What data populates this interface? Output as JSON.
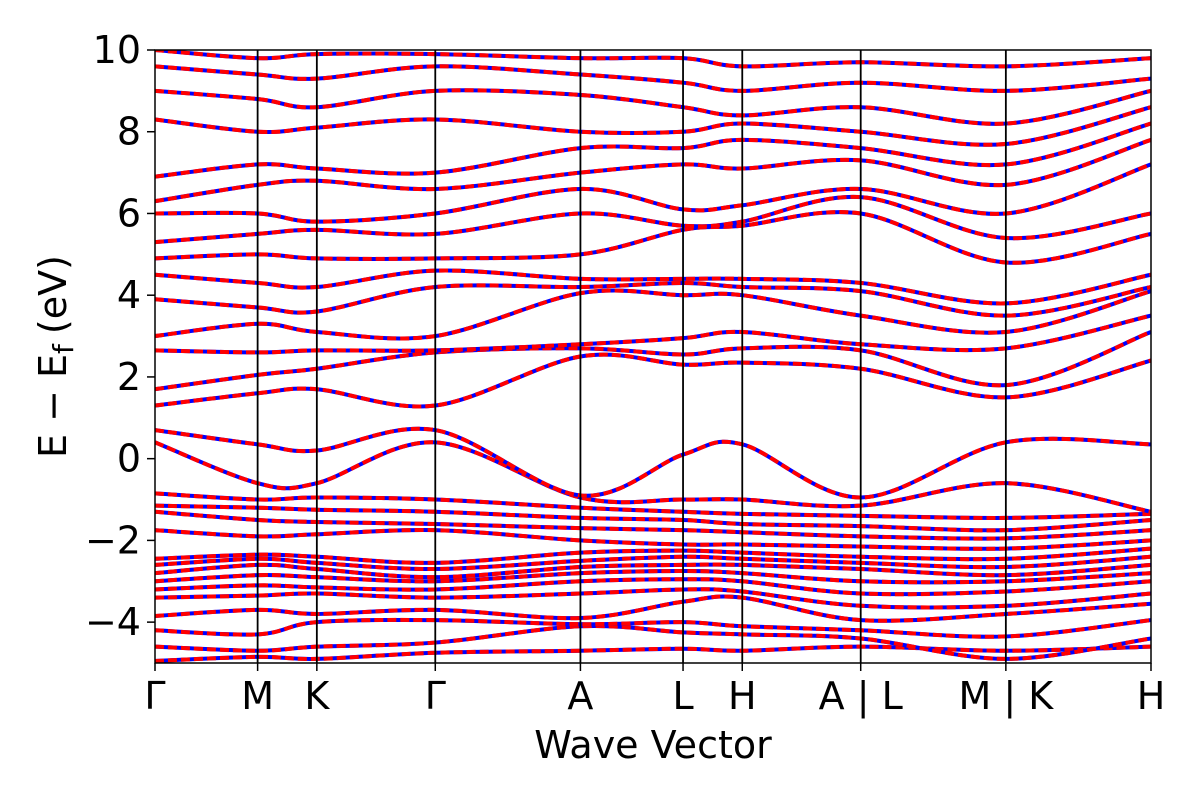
{
  "chart_data": {
    "type": "line",
    "title": "",
    "xlabel": "Wave Vector",
    "ylabel": "E − E",
    "ylabel_sub": "f",
    "ylabel_unit": "(eV)",
    "ylim": [
      -5,
      10
    ],
    "yticks": [
      -4,
      -2,
      0,
      2,
      4,
      6,
      8,
      10
    ],
    "ytick_labels": [
      "−4",
      "−2",
      "0",
      "2",
      "4",
      "6",
      "8",
      "10"
    ],
    "k_path_positions": [
      0,
      0.707,
      1.115,
      1.931,
      2.931,
      3.638,
      4.046,
      4.862,
      5.862,
      6.862
    ],
    "k_labels": [
      "Γ",
      "M",
      "K",
      "Γ",
      "A",
      "L",
      "H",
      "A | L",
      "M | K",
      "H"
    ],
    "xlim": [
      0,
      6.862
    ],
    "series_colors": {
      "dft": "#ff0000",
      "wannier": "#0000ff"
    },
    "bands": [
      [
        [
          0,
          -4.95
        ],
        [
          0.707,
          -4.85
        ],
        [
          1.115,
          -4.9
        ],
        [
          1.931,
          -4.75
        ],
        [
          2.931,
          -4.7
        ],
        [
          3.638,
          -4.65
        ],
        [
          4.046,
          -4.7
        ],
        [
          4.862,
          -4.6
        ],
        [
          5.862,
          -4.7
        ],
        [
          6.862,
          -4.6
        ]
      ],
      [
        [
          0,
          -4.6
        ],
        [
          0.707,
          -4.7
        ],
        [
          1.115,
          -4.6
        ],
        [
          1.931,
          -4.5
        ],
        [
          2.931,
          -4.1
        ],
        [
          3.638,
          -4.25
        ],
        [
          4.046,
          -4.3
        ],
        [
          4.862,
          -4.4
        ],
        [
          5.862,
          -4.9
        ],
        [
          6.862,
          -4.4
        ]
      ],
      [
        [
          0,
          -4.2
        ],
        [
          0.707,
          -4.3
        ],
        [
          1.115,
          -4.0
        ],
        [
          1.931,
          -3.95
        ],
        [
          2.931,
          -4.05
        ],
        [
          3.638,
          -4.0
        ],
        [
          4.046,
          -4.1
        ],
        [
          4.862,
          -4.2
        ],
        [
          5.862,
          -4.35
        ],
        [
          6.862,
          -3.95
        ]
      ],
      [
        [
          0,
          -3.85
        ],
        [
          0.707,
          -3.7
        ],
        [
          1.115,
          -3.8
        ],
        [
          1.931,
          -3.7
        ],
        [
          2.931,
          -3.9
        ],
        [
          3.638,
          -3.5
        ],
        [
          4.046,
          -3.4
        ],
        [
          4.862,
          -3.95
        ],
        [
          5.862,
          -3.8
        ],
        [
          6.862,
          -3.55
        ]
      ],
      [
        [
          0,
          -3.4
        ],
        [
          0.707,
          -3.35
        ],
        [
          1.115,
          -3.3
        ],
        [
          1.931,
          -3.4
        ],
        [
          2.931,
          -3.3
        ],
        [
          3.638,
          -3.2
        ],
        [
          4.046,
          -3.25
        ],
        [
          4.862,
          -3.6
        ],
        [
          5.862,
          -3.6
        ],
        [
          6.862,
          -3.3
        ]
      ],
      [
        [
          0,
          -3.2
        ],
        [
          0.707,
          -3.1
        ],
        [
          1.115,
          -3.15
        ],
        [
          1.931,
          -3.2
        ],
        [
          2.931,
          -3.0
        ],
        [
          3.638,
          -2.95
        ],
        [
          4.046,
          -3.0
        ],
        [
          4.862,
          -3.3
        ],
        [
          5.862,
          -3.25
        ],
        [
          6.862,
          -3.0
        ]
      ],
      [
        [
          0,
          -3.0
        ],
        [
          0.707,
          -2.85
        ],
        [
          1.115,
          -2.9
        ],
        [
          1.931,
          -3.0
        ],
        [
          2.931,
          -2.8
        ],
        [
          3.638,
          -2.75
        ],
        [
          4.046,
          -2.8
        ],
        [
          4.862,
          -3.0
        ],
        [
          5.862,
          -3.0
        ],
        [
          6.862,
          -2.8
        ]
      ],
      [
        [
          0,
          -2.8
        ],
        [
          0.707,
          -2.6
        ],
        [
          1.115,
          -2.7
        ],
        [
          1.931,
          -2.9
        ],
        [
          2.931,
          -2.65
        ],
        [
          3.638,
          -2.6
        ],
        [
          4.046,
          -2.6
        ],
        [
          4.862,
          -2.7
        ],
        [
          5.862,
          -2.85
        ],
        [
          6.862,
          -2.6
        ]
      ],
      [
        [
          0,
          -2.6
        ],
        [
          0.707,
          -2.45
        ],
        [
          1.115,
          -2.55
        ],
        [
          1.931,
          -2.7
        ],
        [
          2.931,
          -2.5
        ],
        [
          3.638,
          -2.4
        ],
        [
          4.046,
          -2.45
        ],
        [
          4.862,
          -2.55
        ],
        [
          5.862,
          -2.65
        ],
        [
          6.862,
          -2.4
        ]
      ],
      [
        [
          0,
          -2.45
        ],
        [
          0.707,
          -2.35
        ],
        [
          1.115,
          -2.4
        ],
        [
          1.931,
          -2.55
        ],
        [
          2.931,
          -2.3
        ],
        [
          3.638,
          -2.25
        ],
        [
          4.046,
          -2.3
        ],
        [
          4.862,
          -2.4
        ],
        [
          5.862,
          -2.45
        ],
        [
          6.862,
          -2.2
        ]
      ],
      [
        [
          0,
          -1.75
        ],
        [
          0.707,
          -1.9
        ],
        [
          1.115,
          -1.85
        ],
        [
          1.931,
          -1.75
        ],
        [
          2.931,
          -2.0
        ],
        [
          3.638,
          -2.1
        ],
        [
          4.046,
          -2.1
        ],
        [
          4.862,
          -2.15
        ],
        [
          5.862,
          -2.2
        ],
        [
          6.862,
          -2.0
        ]
      ],
      [
        [
          0,
          -1.3
        ],
        [
          0.707,
          -1.5
        ],
        [
          1.115,
          -1.55
        ],
        [
          1.931,
          -1.6
        ],
        [
          2.931,
          -1.7
        ],
        [
          3.638,
          -1.75
        ],
        [
          4.046,
          -1.8
        ],
        [
          4.862,
          -1.9
        ],
        [
          5.862,
          -1.95
        ],
        [
          6.862,
          -1.75
        ]
      ],
      [
        [
          0,
          -1.15
        ],
        [
          0.707,
          -1.2
        ],
        [
          1.115,
          -1.25
        ],
        [
          1.931,
          -1.3
        ],
        [
          2.931,
          -1.45
        ],
        [
          3.638,
          -1.5
        ],
        [
          4.046,
          -1.6
        ],
        [
          4.862,
          -1.65
        ],
        [
          5.862,
          -1.75
        ],
        [
          6.862,
          -1.5
        ]
      ],
      [
        [
          0,
          -0.85
        ],
        [
          0.707,
          -1.0
        ],
        [
          1.115,
          -0.95
        ],
        [
          1.931,
          -1.0
        ],
        [
          2.931,
          -1.2
        ],
        [
          3.638,
          -1.3
        ],
        [
          4.046,
          -1.35
        ],
        [
          4.862,
          -1.4
        ],
        [
          5.862,
          -1.45
        ],
        [
          6.862,
          -1.35
        ]
      ],
      [
        [
          0,
          0.4
        ],
        [
          0.707,
          -0.6
        ],
        [
          1.115,
          -0.6
        ],
        [
          1.931,
          0.4
        ],
        [
          2.931,
          -0.95
        ],
        [
          3.638,
          -1.0
        ],
        [
          4.046,
          -1.0
        ],
        [
          4.862,
          -1.15
        ],
        [
          5.862,
          -0.6
        ],
        [
          6.862,
          -1.3
        ]
      ],
      [
        [
          0,
          0.7
        ],
        [
          0.707,
          0.35
        ],
        [
          1.115,
          0.2
        ],
        [
          1.931,
          0.7
        ],
        [
          2.931,
          -0.9
        ],
        [
          3.638,
          0.1
        ],
        [
          4.046,
          0.35
        ],
        [
          4.862,
          -0.95
        ],
        [
          5.862,
          0.4
        ],
        [
          6.862,
          0.35
        ]
      ],
      [
        [
          0,
          1.3
        ],
        [
          0.707,
          1.6
        ],
        [
          1.115,
          1.7
        ],
        [
          1.931,
          1.3
        ],
        [
          2.931,
          2.5
        ],
        [
          3.638,
          2.3
        ],
        [
          4.046,
          2.35
        ],
        [
          4.862,
          2.2
        ],
        [
          5.862,
          1.5
        ],
        [
          6.862,
          2.4
        ]
      ],
      [
        [
          0,
          1.7
        ],
        [
          0.707,
          2.05
        ],
        [
          1.115,
          2.2
        ],
        [
          1.931,
          2.6
        ],
        [
          2.931,
          2.7
        ],
        [
          3.638,
          2.55
        ],
        [
          4.046,
          2.7
        ],
        [
          4.862,
          2.65
        ],
        [
          5.862,
          1.8
        ],
        [
          6.862,
          3.1
        ]
      ],
      [
        [
          0,
          2.65
        ],
        [
          0.707,
          2.6
        ],
        [
          1.115,
          2.65
        ],
        [
          1.931,
          2.65
        ],
        [
          2.931,
          2.8
        ],
        [
          3.638,
          2.95
        ],
        [
          4.046,
          3.1
        ],
        [
          4.862,
          2.8
        ],
        [
          5.862,
          2.7
        ],
        [
          6.862,
          3.5
        ]
      ],
      [
        [
          0,
          3.0
        ],
        [
          0.707,
          3.3
        ],
        [
          1.115,
          3.1
        ],
        [
          1.931,
          3.0
        ],
        [
          2.931,
          4.05
        ],
        [
          3.638,
          4.0
        ],
        [
          4.046,
          4.0
        ],
        [
          4.862,
          3.5
        ],
        [
          5.862,
          3.1
        ],
        [
          6.862,
          4.1
        ]
      ],
      [
        [
          0,
          3.9
        ],
        [
          0.707,
          3.7
        ],
        [
          1.115,
          3.6
        ],
        [
          1.931,
          4.2
        ],
        [
          2.931,
          4.2
        ],
        [
          3.638,
          4.3
        ],
        [
          4.046,
          4.2
        ],
        [
          4.862,
          4.1
        ],
        [
          5.862,
          3.5
        ],
        [
          6.862,
          4.2
        ]
      ],
      [
        [
          0,
          4.5
        ],
        [
          0.707,
          4.3
        ],
        [
          1.115,
          4.2
        ],
        [
          1.931,
          4.6
        ],
        [
          2.931,
          4.4
        ],
        [
          3.638,
          4.4
        ],
        [
          4.046,
          4.4
        ],
        [
          4.862,
          4.3
        ],
        [
          5.862,
          3.8
        ],
        [
          6.862,
          4.5
        ]
      ],
      [
        [
          0,
          4.9
        ],
        [
          0.707,
          5.0
        ],
        [
          1.115,
          4.9
        ],
        [
          1.931,
          4.9
        ],
        [
          2.931,
          5.0
        ],
        [
          3.638,
          5.6
        ],
        [
          4.046,
          5.7
        ],
        [
          4.862,
          6.0
        ],
        [
          5.862,
          4.8
        ],
        [
          6.862,
          5.5
        ]
      ],
      [
        [
          0,
          5.3
        ],
        [
          0.707,
          5.5
        ],
        [
          1.115,
          5.6
        ],
        [
          1.931,
          5.5
        ],
        [
          2.931,
          6.0
        ],
        [
          3.638,
          5.7
        ],
        [
          4.046,
          5.8
        ],
        [
          4.862,
          6.4
        ],
        [
          5.862,
          5.4
        ],
        [
          6.862,
          6.0
        ]
      ],
      [
        [
          0,
          6.0
        ],
        [
          0.707,
          6.0
        ],
        [
          1.115,
          5.8
        ],
        [
          1.931,
          6.0
        ],
        [
          2.931,
          6.6
        ],
        [
          3.638,
          6.1
        ],
        [
          4.046,
          6.2
        ],
        [
          4.862,
          6.6
        ],
        [
          5.862,
          6.0
        ],
        [
          6.862,
          7.2
        ]
      ],
      [
        [
          0,
          6.3
        ],
        [
          0.707,
          6.7
        ],
        [
          1.115,
          6.8
        ],
        [
          1.931,
          6.6
        ],
        [
          2.931,
          7.0
        ],
        [
          3.638,
          7.2
        ],
        [
          4.046,
          7.1
        ],
        [
          4.862,
          7.3
        ],
        [
          5.862,
          6.7
        ],
        [
          6.862,
          7.8
        ]
      ],
      [
        [
          0,
          6.9
        ],
        [
          0.707,
          7.2
        ],
        [
          1.115,
          7.1
        ],
        [
          1.931,
          7.0
        ],
        [
          2.931,
          7.6
        ],
        [
          3.638,
          7.6
        ],
        [
          4.046,
          7.8
        ],
        [
          4.862,
          7.6
        ],
        [
          5.862,
          7.2
        ],
        [
          6.862,
          8.2
        ]
      ],
      [
        [
          0,
          8.3
        ],
        [
          0.707,
          8.0
        ],
        [
          1.115,
          8.1
        ],
        [
          1.931,
          8.3
        ],
        [
          2.931,
          8.0
        ],
        [
          3.638,
          8.0
        ],
        [
          4.046,
          8.2
        ],
        [
          4.862,
          8.0
        ],
        [
          5.862,
          7.7
        ],
        [
          6.862,
          8.6
        ]
      ],
      [
        [
          0,
          9.0
        ],
        [
          0.707,
          8.8
        ],
        [
          1.115,
          8.6
        ],
        [
          1.931,
          9.0
        ],
        [
          2.931,
          8.9
        ],
        [
          3.638,
          8.6
        ],
        [
          4.046,
          8.4
        ],
        [
          4.862,
          8.6
        ],
        [
          5.862,
          8.2
        ],
        [
          6.862,
          9.0
        ]
      ],
      [
        [
          0,
          9.6
        ],
        [
          0.707,
          9.4
        ],
        [
          1.115,
          9.3
        ],
        [
          1.931,
          9.6
        ],
        [
          2.931,
          9.4
        ],
        [
          3.638,
          9.2
        ],
        [
          4.046,
          9.0
        ],
        [
          4.862,
          9.2
        ],
        [
          5.862,
          9.0
        ],
        [
          6.862,
          9.3
        ]
      ],
      [
        [
          0,
          10.0
        ],
        [
          0.707,
          9.8
        ],
        [
          1.115,
          9.9
        ],
        [
          1.931,
          9.9
        ],
        [
          2.931,
          9.8
        ],
        [
          3.638,
          9.8
        ],
        [
          4.046,
          9.6
        ],
        [
          4.862,
          9.7
        ],
        [
          5.862,
          9.6
        ],
        [
          6.862,
          9.8
        ]
      ]
    ]
  }
}
